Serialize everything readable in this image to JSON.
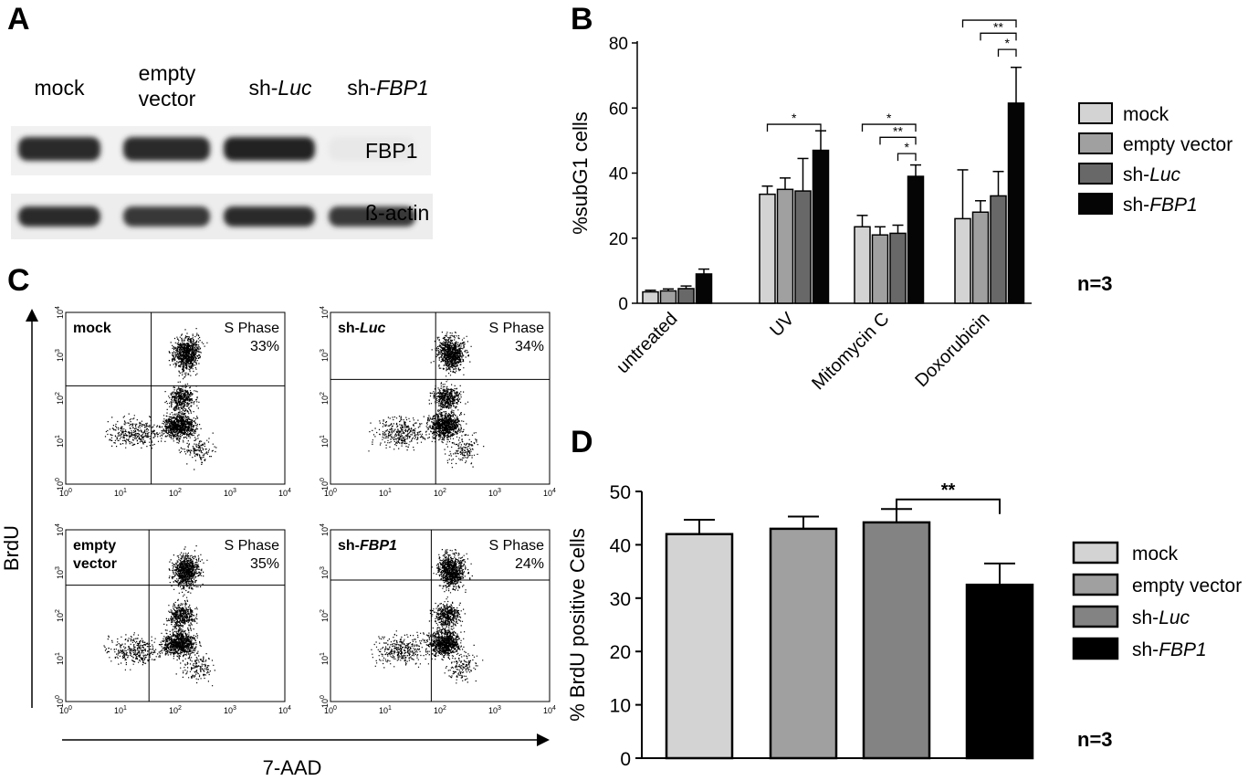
{
  "panels": {
    "a": "A",
    "b": "B",
    "c": "C",
    "d": "D"
  },
  "western_blot": {
    "lanes": [
      {
        "line1": "mock",
        "line2": "",
        "italic": ""
      },
      {
        "line1": "empty",
        "line2": "vector",
        "italic": ""
      },
      {
        "line1": "sh-",
        "line2": "",
        "italic": "Luc"
      },
      {
        "line1": "sh-",
        "line2": "",
        "italic": "FBP1"
      }
    ],
    "proteins": [
      "FBP1",
      "ß-actin"
    ],
    "fbp1_intensity": [
      0.9,
      0.9,
      0.95,
      0.1
    ],
    "actin_intensity": [
      0.9,
      0.85,
      0.9,
      0.85
    ]
  },
  "panel_b": {
    "ylabel": "%subG1 cells",
    "yticks": [
      "0",
      "20",
      "40",
      "60",
      "80"
    ],
    "n_label": "n=3",
    "chart_data": {
      "type": "bar",
      "categories": [
        "untreated",
        "UV",
        "Mitomycin C",
        "Doxorubicin"
      ],
      "ylim": [
        0,
        80
      ],
      "series": [
        {
          "name": "mock",
          "color": "#d3d3d3",
          "values": [
            3.5,
            33.5,
            23.5,
            26
          ],
          "errors": [
            0.5,
            2.5,
            3.5,
            15
          ]
        },
        {
          "name": "empty vector",
          "color": "#a0a0a0",
          "values": [
            3.8,
            35,
            21,
            28
          ],
          "errors": [
            0.6,
            3.5,
            2.5,
            3.5
          ]
        },
        {
          "name": "sh-Luc",
          "color": "#686868",
          "values": [
            4.5,
            34.5,
            21.5,
            33
          ],
          "errors": [
            0.8,
            10,
            2.5,
            7.5
          ]
        },
        {
          "name": "sh-FBP1",
          "color": "#050505",
          "values": [
            9,
            47,
            39,
            61.5
          ],
          "errors": [
            1.5,
            6,
            3.5,
            11
          ]
        }
      ],
      "legend": [
        {
          "prefix": "mock",
          "italic": ""
        },
        {
          "prefix": "empty vector",
          "italic": ""
        },
        {
          "prefix": "sh-",
          "italic": "Luc"
        },
        {
          "prefix": "sh-",
          "italic": "FBP1"
        }
      ],
      "significance": [
        {
          "label": "*",
          "cat": 1,
          "from": 0,
          "to": 3,
          "level": 55
        },
        {
          "label": "*",
          "cat": 2,
          "from": 0,
          "to": 3,
          "level": 55
        },
        {
          "label": "**",
          "cat": 2,
          "from": 1,
          "to": 3,
          "level": 51
        },
        {
          "label": "*",
          "cat": 2,
          "from": 2,
          "to": 3,
          "level": 46
        },
        {
          "label": "**",
          "cat": 3,
          "from": 0,
          "to": 3,
          "level": 87
        },
        {
          "label": "**",
          "cat": 3,
          "from": 1,
          "to": 3,
          "level": 83
        },
        {
          "label": "*",
          "cat": 3,
          "from": 2,
          "to": 3,
          "level": 78
        }
      ]
    }
  },
  "panel_c": {
    "ylabel": "BrdU",
    "xlabel": "7-AAD",
    "s_phase_label": "S Phase",
    "plots": [
      {
        "name": "mock",
        "italic": "",
        "name2": "",
        "pct": "33%"
      },
      {
        "name": "sh-",
        "italic": "Luc",
        "name2": "",
        "pct": "34%"
      },
      {
        "name": "empty",
        "italic": "",
        "name2": "vector",
        "pct": "35%"
      },
      {
        "name": "sh-",
        "italic": "FBP1",
        "name2": "",
        "pct": "24%"
      }
    ],
    "gate_frac": [
      [
        0.39,
        0.57
      ],
      [
        0.48,
        0.52
      ],
      [
        0.38,
        0.43
      ],
      [
        0.46,
        0.39
      ]
    ],
    "axis_ticks": [
      "0",
      "1",
      "2",
      "3",
      "4"
    ]
  },
  "panel_d": {
    "ylabel": "% BrdU positive Cells",
    "yticks": [
      "0",
      "10",
      "20",
      "30",
      "40",
      "50"
    ],
    "n_label": "n=3",
    "chart_data": {
      "type": "bar",
      "categories": [
        "mock",
        "empty vector",
        "sh-Luc",
        "sh-FBP1"
      ],
      "ylim": [
        0,
        50
      ],
      "values": [
        42,
        43,
        44.2,
        32.5
      ],
      "errors": [
        2.7,
        2.3,
        2.5,
        4
      ],
      "colors": [
        "#d3d3d3",
        "#a0a0a0",
        "#838383",
        "#000000"
      ],
      "legend": [
        {
          "prefix": "mock",
          "italic": ""
        },
        {
          "prefix": "empty vector",
          "italic": ""
        },
        {
          "prefix": "sh-",
          "italic": "Luc"
        },
        {
          "prefix": "sh-",
          "italic": "FBP1"
        }
      ],
      "significance": [
        {
          "label": "**",
          "from": 2,
          "to": 3,
          "level": 48.5
        }
      ]
    }
  }
}
